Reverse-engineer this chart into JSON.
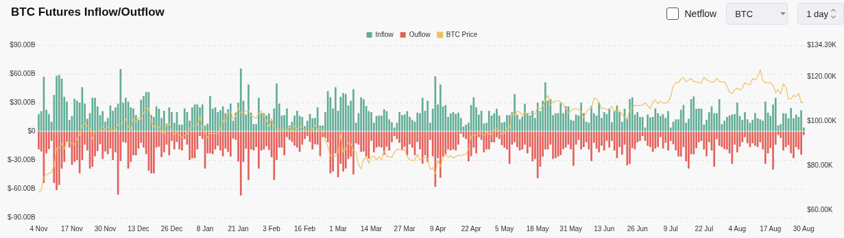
{
  "chart_data": {
    "type": "bar",
    "title": "BTC Futures Inflow/Outflow",
    "stacked": true,
    "grid": "y",
    "legend": "top",
    "marker": "none",
    "annotations": [
      "Netflow",
      "BTC",
      "1 day"
    ],
    "categories": [
      "4 Nov",
      null,
      null,
      null,
      null,
      null,
      null,
      null,
      null,
      null,
      null,
      null,
      null,
      "17 Nov",
      null,
      null,
      null,
      null,
      null,
      null,
      null,
      null,
      null,
      null,
      null,
      null,
      "30 Nov",
      null,
      null,
      null,
      null,
      null,
      null,
      null,
      null,
      null,
      null,
      null,
      null,
      "13 Dec",
      null,
      null,
      null,
      null,
      null,
      null,
      null,
      null,
      null,
      null,
      null,
      null,
      "26 Dec",
      null,
      null,
      null,
      null,
      null,
      null,
      null,
      null,
      null,
      null,
      null,
      null,
      "8 Jan",
      null,
      null,
      null,
      null,
      null,
      null,
      null,
      null,
      null,
      null,
      null,
      null,
      "21 Jan",
      null,
      null,
      null,
      null,
      null,
      null,
      null,
      null,
      null,
      null,
      null,
      null,
      "3 Feb",
      null,
      null,
      null,
      null,
      null,
      null,
      null,
      null,
      null,
      null,
      null,
      null,
      "16 Feb",
      null,
      null,
      null,
      null,
      null,
      null,
      null,
      null,
      null,
      null,
      null,
      null,
      "1 Mar",
      null,
      null,
      null,
      null,
      null,
      null,
      null,
      null,
      null,
      null,
      null,
      null,
      "14 Mar",
      null,
      null,
      null,
      null,
      null,
      null,
      null,
      null,
      null,
      null,
      null,
      null,
      "27 Mar",
      null,
      null,
      null,
      null,
      null,
      null,
      null,
      null,
      null,
      null,
      null,
      null,
      "9 Apr",
      null,
      null,
      null,
      null,
      null,
      null,
      null,
      null,
      null,
      null,
      null,
      null,
      "22 Apr",
      null,
      null,
      null,
      null,
      null,
      null,
      null,
      null,
      null,
      null,
      null,
      null,
      "5 May",
      null,
      null,
      null,
      null,
      null,
      null,
      null,
      null,
      null,
      null,
      null,
      null,
      "18 May",
      null,
      null,
      null,
      null,
      null,
      null,
      null,
      null,
      null,
      null,
      null,
      null,
      "31 May",
      null,
      null,
      null,
      null,
      null,
      null,
      null,
      null,
      null,
      null,
      null,
      null,
      "13 Jun",
      null,
      null,
      null,
      null,
      null,
      null,
      null,
      null,
      null,
      null,
      null,
      null,
      "26 Jun",
      null,
      null,
      null,
      null,
      null,
      null,
      null,
      null,
      null,
      null,
      null,
      null,
      "9 Jul",
      null,
      null,
      null,
      null,
      null,
      null,
      null,
      null,
      null,
      null,
      null,
      null,
      "22 Jul",
      null,
      null,
      null,
      null,
      null,
      null,
      null,
      null,
      null,
      null,
      null,
      null,
      "4 Aug",
      null,
      null,
      null,
      null,
      null,
      null,
      null,
      null,
      null,
      null,
      null,
      null,
      "17 Aug",
      null,
      null,
      null,
      null,
      null,
      null,
      null,
      null,
      null,
      null,
      null,
      null,
      "30 Aug"
    ],
    "ylim": [
      -90,
      90
    ],
    "yticks": [
      {
        "value": -90,
        "label": "$-90.00B"
      },
      {
        "value": -60,
        "label": "$-60.00B"
      },
      {
        "value": -30,
        "label": "$-30.00B"
      },
      {
        "value": 0,
        "label": "$0"
      },
      {
        "value": 30,
        "label": "$30.00B"
      },
      {
        "value": 60,
        "label": "$60.00B"
      },
      {
        "value": 90,
        "label": "$90.00B"
      }
    ],
    "y2lim": [
      56.65,
      134.39
    ],
    "y2ticks": [
      {
        "value": 60,
        "label": "$60.00K"
      },
      {
        "value": 80,
        "label": "$80.00K"
      },
      {
        "value": 100,
        "label": "$100.00K"
      },
      {
        "value": 120,
        "label": "$120.00K"
      },
      {
        "value": 134.39,
        "label": "$134.39K"
      }
    ],
    "series": [
      {
        "name": "Inflow",
        "color": "#62ad97",
        "values": [
          18,
          21,
          57,
          22.5,
          18,
          10,
          38,
          58,
          59,
          55,
          36,
          31,
          12,
          16,
          34,
          32,
          30,
          46,
          29,
          13,
          19,
          35,
          35,
          26,
          17,
          21,
          10,
          14,
          27,
          21.5,
          25,
          29,
          65,
          30,
          35,
          31,
          25,
          24,
          17,
          12,
          33,
          37,
          41,
          41,
          17,
          15,
          26,
          23.5,
          14,
          21.5,
          8,
          25,
          20,
          9,
          20,
          7,
          7,
          24,
          20,
          11,
          25,
          28,
          28,
          25,
          28,
          6,
          8,
          37,
          23.5,
          25,
          20,
          22,
          26,
          19,
          23,
          29,
          11,
          19.5,
          30,
          65.5,
          32,
          17.5,
          49,
          19.5,
          7.5,
          7.5,
          35,
          19,
          19,
          16.5,
          18.5,
          11,
          24,
          50,
          29,
          16.5,
          17,
          24,
          6,
          10,
          16.5,
          21.5,
          16,
          15,
          5.5,
          11,
          18,
          13.5,
          14,
          25,
          6,
          6,
          20,
          42,
          35.5,
          24,
          46,
          21.5,
          36,
          40,
          39,
          27,
          32,
          44,
          9,
          19,
          35.5,
          33.5,
          26.5,
          21,
          20,
          9,
          16,
          16.5,
          16.5,
          23,
          21,
          12.5,
          9.5,
          4,
          9,
          20,
          17,
          17.5,
          21,
          15,
          12,
          10,
          19.5,
          19,
          35,
          21.5,
          32,
          9,
          23.5,
          57.5,
          28,
          49,
          26,
          27.5,
          15,
          18.5,
          20,
          18,
          19.5,
          14,
          5,
          7,
          9,
          27.5,
          35.5,
          25,
          17.5,
          21.5,
          8,
          9,
          21.5,
          16.5,
          19,
          23.5,
          16.5,
          9,
          10,
          17,
          17,
          20,
          39,
          17.5,
          12.5,
          15.5,
          29,
          19,
          16.5,
          21.5,
          14,
          30,
          21,
          32,
          51,
          32,
          33.5,
          17,
          19,
          19,
          29.5,
          19,
          26,
          26,
          12,
          11,
          17.5,
          16.5,
          30,
          19,
          10,
          9,
          26.5,
          19,
          16.5,
          30,
          14,
          20,
          18,
          24,
          9.5,
          21,
          27,
          20,
          10,
          23.5,
          14,
          33.5,
          35.5,
          17.5,
          20,
          15,
          15,
          4,
          17.5,
          14.5,
          15,
          24,
          19,
          16,
          18,
          14,
          21,
          4,
          10,
          12.5,
          12.5,
          22.5,
          27.5,
          9,
          13,
          33.5,
          36.5,
          23.5,
          24,
          23.5,
          7,
          12,
          20,
          26,
          19,
          19,
          33.5,
          7.5,
          11,
          15,
          16.5,
          17.5,
          18,
          30,
          16,
          12,
          20,
          12.5,
          9,
          12,
          19,
          13.5,
          12.5,
          11,
          31,
          19.5,
          16,
          28,
          35,
          6,
          7.5,
          19,
          18.5,
          13.5,
          24.5,
          13.5,
          17.5,
          15,
          22,
          4
        ]
      },
      {
        "name": "Ouflow",
        "color": "#e5605a",
        "values": [
          -19,
          -21,
          -54,
          -23,
          -18.5,
          -10,
          -54,
          -61.5,
          -56,
          -39,
          -32,
          -11,
          -17,
          -35,
          -32,
          -30,
          -44,
          -30,
          -14,
          -20,
          -39,
          -37,
          -26,
          -20.5,
          -13.5,
          -29,
          -21,
          -24,
          -18,
          -30,
          -22,
          -66,
          -31,
          -11,
          -12,
          -39,
          -32,
          -25,
          -25,
          -18,
          -12,
          -17,
          -24,
          -41,
          -44,
          -44,
          -17,
          -16,
          -27,
          -22,
          -14,
          -25,
          -10,
          -19,
          -11,
          -19,
          -20,
          -8,
          -14,
          -30,
          -28,
          -28,
          -19,
          -5,
          -8,
          -39,
          -23,
          -23,
          -24,
          -19,
          -15,
          -20,
          -26,
          -18,
          -21.5,
          -26.5,
          -7.5,
          -9,
          -31.5,
          -67,
          -32,
          -18,
          -51,
          -19,
          -20,
          -16.5,
          -39,
          -20,
          -19,
          -15.5,
          -19.5,
          -27,
          -51,
          -30,
          -17,
          -17,
          -25,
          -6,
          -9,
          -11,
          -15,
          -17,
          -21.5,
          -14,
          -8,
          -5,
          -11,
          -19,
          -13.5,
          -14,
          -26,
          -6,
          -7,
          -11.5,
          -44,
          -42,
          -23,
          -48,
          -34,
          -42,
          -39,
          -29,
          -26.5,
          -45,
          -12.5,
          -14,
          -21.5,
          -21,
          -26.5,
          -28.5,
          -10,
          -22,
          -17,
          -16,
          -17,
          -24.5,
          -16,
          -20,
          -11.5,
          -5,
          -8,
          -12,
          -19,
          -16,
          -25,
          -13.5,
          -17,
          -25,
          -11,
          -19,
          -34,
          -25,
          -32,
          -9,
          -26,
          -58,
          -28,
          -48.5,
          -26.5,
          -24,
          -19,
          -20,
          -19,
          -20,
          -14,
          -2.5,
          -6,
          -8,
          -31.5,
          -26,
          -17,
          -23,
          -6,
          -9,
          -22,
          -19,
          -19,
          -11.5,
          -11.5,
          -6,
          -8,
          -14.5,
          -17,
          -19,
          -34,
          -14,
          -11.5,
          -16.5,
          -20,
          -19,
          -14,
          -23,
          -16.5,
          -31.5,
          -29,
          -49,
          -37,
          -26.5,
          -19,
          -19,
          -14,
          -29,
          -28,
          -26.5,
          -25,
          -18.5,
          -17,
          -14,
          -19,
          -36,
          -14,
          -9,
          -19,
          -16.5,
          -11.5,
          -19,
          -31,
          -12,
          -18,
          -22,
          -15,
          -20,
          -10,
          -17,
          -10,
          -20,
          -28,
          -16.5,
          -24.5,
          -14,
          -35.5,
          -34,
          -17.5,
          -19,
          -11.5,
          -10,
          -5,
          -10,
          -15,
          -16.5,
          -21.5,
          -18,
          -16.5,
          -6,
          -18,
          -12,
          -20,
          -10,
          -13.5,
          -20,
          -26.5,
          -26.5,
          -16.5,
          -31.5,
          -39,
          -24,
          -24,
          -17.5,
          -11.5,
          -10,
          -19,
          -26,
          -11.5,
          -20,
          -37,
          -8,
          -15,
          -16.5,
          -18.5,
          -19,
          -23,
          -34,
          -14,
          -22,
          -16,
          -11.5,
          -6,
          -12.5,
          -16.5,
          -12.5,
          -15,
          -16.5,
          -11.5,
          -19,
          -34,
          -23,
          -17.5,
          -40,
          -14,
          -4,
          -7,
          -20,
          -16.5,
          -14.5,
          -23,
          -28,
          -16.5,
          -19,
          -24.5,
          -4
        ]
      },
      {
        "name": "BTC Price",
        "type": "line",
        "axis": "y2",
        "color": "#f0c05a",
        "values": [
          68,
          69,
          75,
          76,
          76.5,
          77,
          80,
          88,
          88,
          90,
          87.5,
          91,
          90.5,
          90,
          89.5,
          92,
          94,
          98,
          99,
          98,
          97,
          92,
          95.5,
          95.5,
          96,
          97.5,
          96.5,
          97.5,
          95.8,
          96,
          96,
          98.5,
          99,
          99.8,
          101,
          97.5,
          96.5,
          101,
          100,
          101.5,
          101,
          104,
          106,
          106,
          100,
          97.5,
          97.5,
          97.5,
          95,
          94.5,
          98.7,
          99,
          95.8,
          94.2,
          95,
          93.7,
          92.8,
          93.5,
          94.4,
          96.9,
          98,
          98.2,
          98.3,
          102,
          96.9,
          95,
          92.5,
          94.7,
          94.5,
          94.5,
          94.5,
          96.5,
          100.5,
          99.9,
          104,
          104.4,
          101,
          102,
          106.1,
          103.7,
          104,
          104.7,
          104.7,
          102.6,
          102,
          101.3,
          103.7,
          104.7,
          102.4,
          100.6,
          97.7,
          101.4,
          97.9,
          96.6,
          96.5,
          96.5,
          96.5,
          96.1,
          97.4,
          95.7,
          97.9,
          96.6,
          97.5,
          97.6,
          96.1,
          95.8,
          95.5,
          96.5,
          98.3,
          96.1,
          96.6,
          96.3,
          91.4,
          88.7,
          84.3,
          84.7,
          84.3,
          86,
          94.3,
          86.1,
          87.2,
          90.6,
          89.9,
          86.7,
          86.1,
          80.6,
          78.5,
          82.9,
          83.7,
          81,
          84,
          84.3,
          82.6,
          84,
          82.7,
          86.8,
          84.2,
          84,
          83.8,
          86,
          87.5,
          87.4,
          86.9,
          87.2,
          84.3,
          82.6,
          82.4,
          82.5,
          85.2,
          82.5,
          83.1,
          83.9,
          83.5,
          78.2,
          79.2,
          76.3,
          82.6,
          79.6,
          83.4,
          85.3,
          83.7,
          84.5,
          83.6,
          84,
          84.9,
          84.4,
          85,
          85.1,
          87.5,
          93.4,
          93.7,
          93.9,
          94.7,
          94.6,
          93.8,
          95,
          94.3,
          94.2,
          96.5,
          96.9,
          96,
          94.3,
          94.7,
          96.8,
          97,
          103.2,
          102.9,
          104.6,
          104.1,
          102.8,
          104.1,
          103.5,
          103.7,
          103.5,
          103.2,
          106.4,
          105.6,
          106.8,
          109.7,
          111.7,
          107.3,
          108.9,
          109,
          109.4,
          108.9,
          107.8,
          105.6,
          103.9,
          104.6,
          105.6,
          105.8,
          105.4,
          104.6,
          101.5,
          104.3,
          105.6,
          105.7,
          110.3,
          110.2,
          108.6,
          105.7,
          106,
          105.4,
          105.5,
          106.8,
          104.6,
          104.9,
          104.7,
          103.3,
          101.6,
          100.9,
          105.4,
          106,
          107.3,
          107.1,
          107.1,
          107.3,
          108.4,
          107.1,
          105.7,
          108.8,
          109.6,
          108,
          109.2,
          108.2,
          108.2,
          108.9,
          111.3,
          115.9,
          117.5,
          117.4,
          119.1,
          119.8,
          117.7,
          118.7,
          119.3,
          117.9,
          117.9,
          117.3,
          117.4,
          119.9,
          118.8,
          118.3,
          117.6,
          117.9,
          119.4,
          118,
          117.8,
          117.8,
          115.7,
          113.2,
          112.5,
          114.2,
          115,
          114.1,
          115,
          117.5,
          116.7,
          116.5,
          119.3,
          118.7,
          120.1,
          123.3,
          118.4,
          117.4,
          117.5,
          117.4,
          116.3,
          112.9,
          114.3,
          112.4,
          116.9,
          115.4,
          110.2,
          110.1,
          111.8,
          111.2,
          112.6,
          108.4,
          108.8
        ]
      }
    ]
  }
}
